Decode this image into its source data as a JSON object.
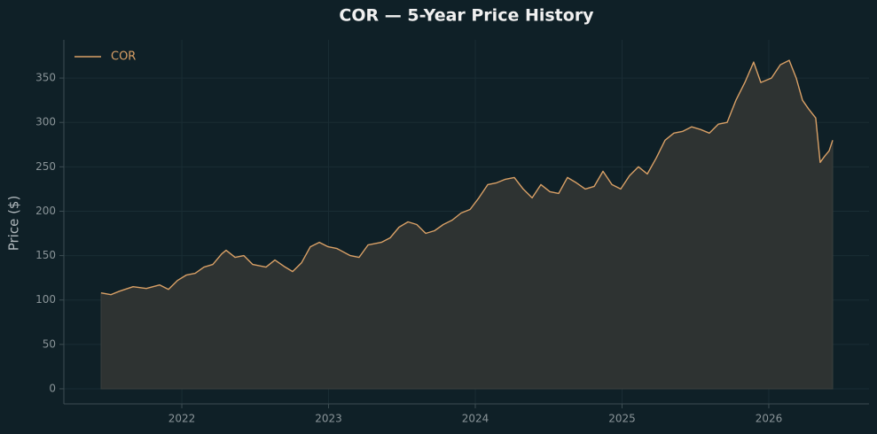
{
  "chart_data": {
    "type": "line",
    "title": "COR — 5-Year Price History",
    "ylabel": "Price ($)",
    "x": [
      2021.45,
      2021.517,
      2021.577,
      2021.668,
      2021.758,
      2021.849,
      2021.909,
      2021.97,
      2022.03,
      2022.091,
      2022.151,
      2022.211,
      2022.272,
      2022.302,
      2022.363,
      2022.423,
      2022.483,
      2022.574,
      2022.634,
      2022.695,
      2022.755,
      2022.816,
      2022.876,
      2022.937,
      2022.997,
      2023.057,
      2023.148,
      2023.208,
      2023.269,
      2023.36,
      2023.42,
      2023.48,
      2023.541,
      2023.601,
      2023.662,
      2023.722,
      2023.782,
      2023.843,
      2023.903,
      2023.964,
      2024.024,
      2024.085,
      2024.145,
      2024.205,
      2024.266,
      2024.326,
      2024.387,
      2024.447,
      2024.508,
      2024.568,
      2024.628,
      2024.689,
      2024.749,
      2024.81,
      2024.87,
      2024.931,
      2024.991,
      2025.051,
      2025.112,
      2025.172,
      2025.233,
      2025.293,
      2025.353,
      2025.414,
      2025.474,
      2025.535,
      2025.595,
      2025.656,
      2025.716,
      2025.776,
      2025.837,
      2025.897,
      2025.946,
      2026.018,
      2026.079,
      2026.139,
      2026.187,
      2026.23,
      2026.272,
      2026.32,
      2026.35,
      2026.381,
      2026.411,
      2026.435
    ],
    "series": [
      {
        "name": "COR",
        "color": "#d9a066",
        "values": [
          108,
          106,
          110,
          115,
          113,
          117,
          112,
          122,
          128,
          130,
          137,
          140,
          152,
          156,
          148,
          150,
          140,
          137,
          145,
          138,
          132,
          142,
          160,
          165,
          160,
          158,
          150,
          148,
          162,
          165,
          170,
          182,
          188,
          185,
          175,
          178,
          185,
          190,
          198,
          202,
          215,
          230,
          232,
          236,
          238,
          225,
          215,
          230,
          222,
          220,
          238,
          232,
          225,
          228,
          245,
          230,
          225,
          240,
          250,
          242,
          260,
          280,
          288,
          290,
          295,
          292,
          288,
          298,
          300,
          325,
          345,
          368,
          345,
          350,
          365,
          370,
          350,
          325,
          315,
          305,
          255,
          262,
          268,
          280
        ]
      }
    ],
    "xlim": [
      2021.196,
      2026.683
    ],
    "xticks": [
      2022,
      2023,
      2024,
      2025,
      2026
    ],
    "ylim": [
      -17,
      393
    ],
    "yticks": [
      0,
      50,
      100,
      150,
      200,
      250,
      300,
      350
    ],
    "grid": true,
    "legend": "upper-left",
    "area_color": "#2e3332"
  }
}
